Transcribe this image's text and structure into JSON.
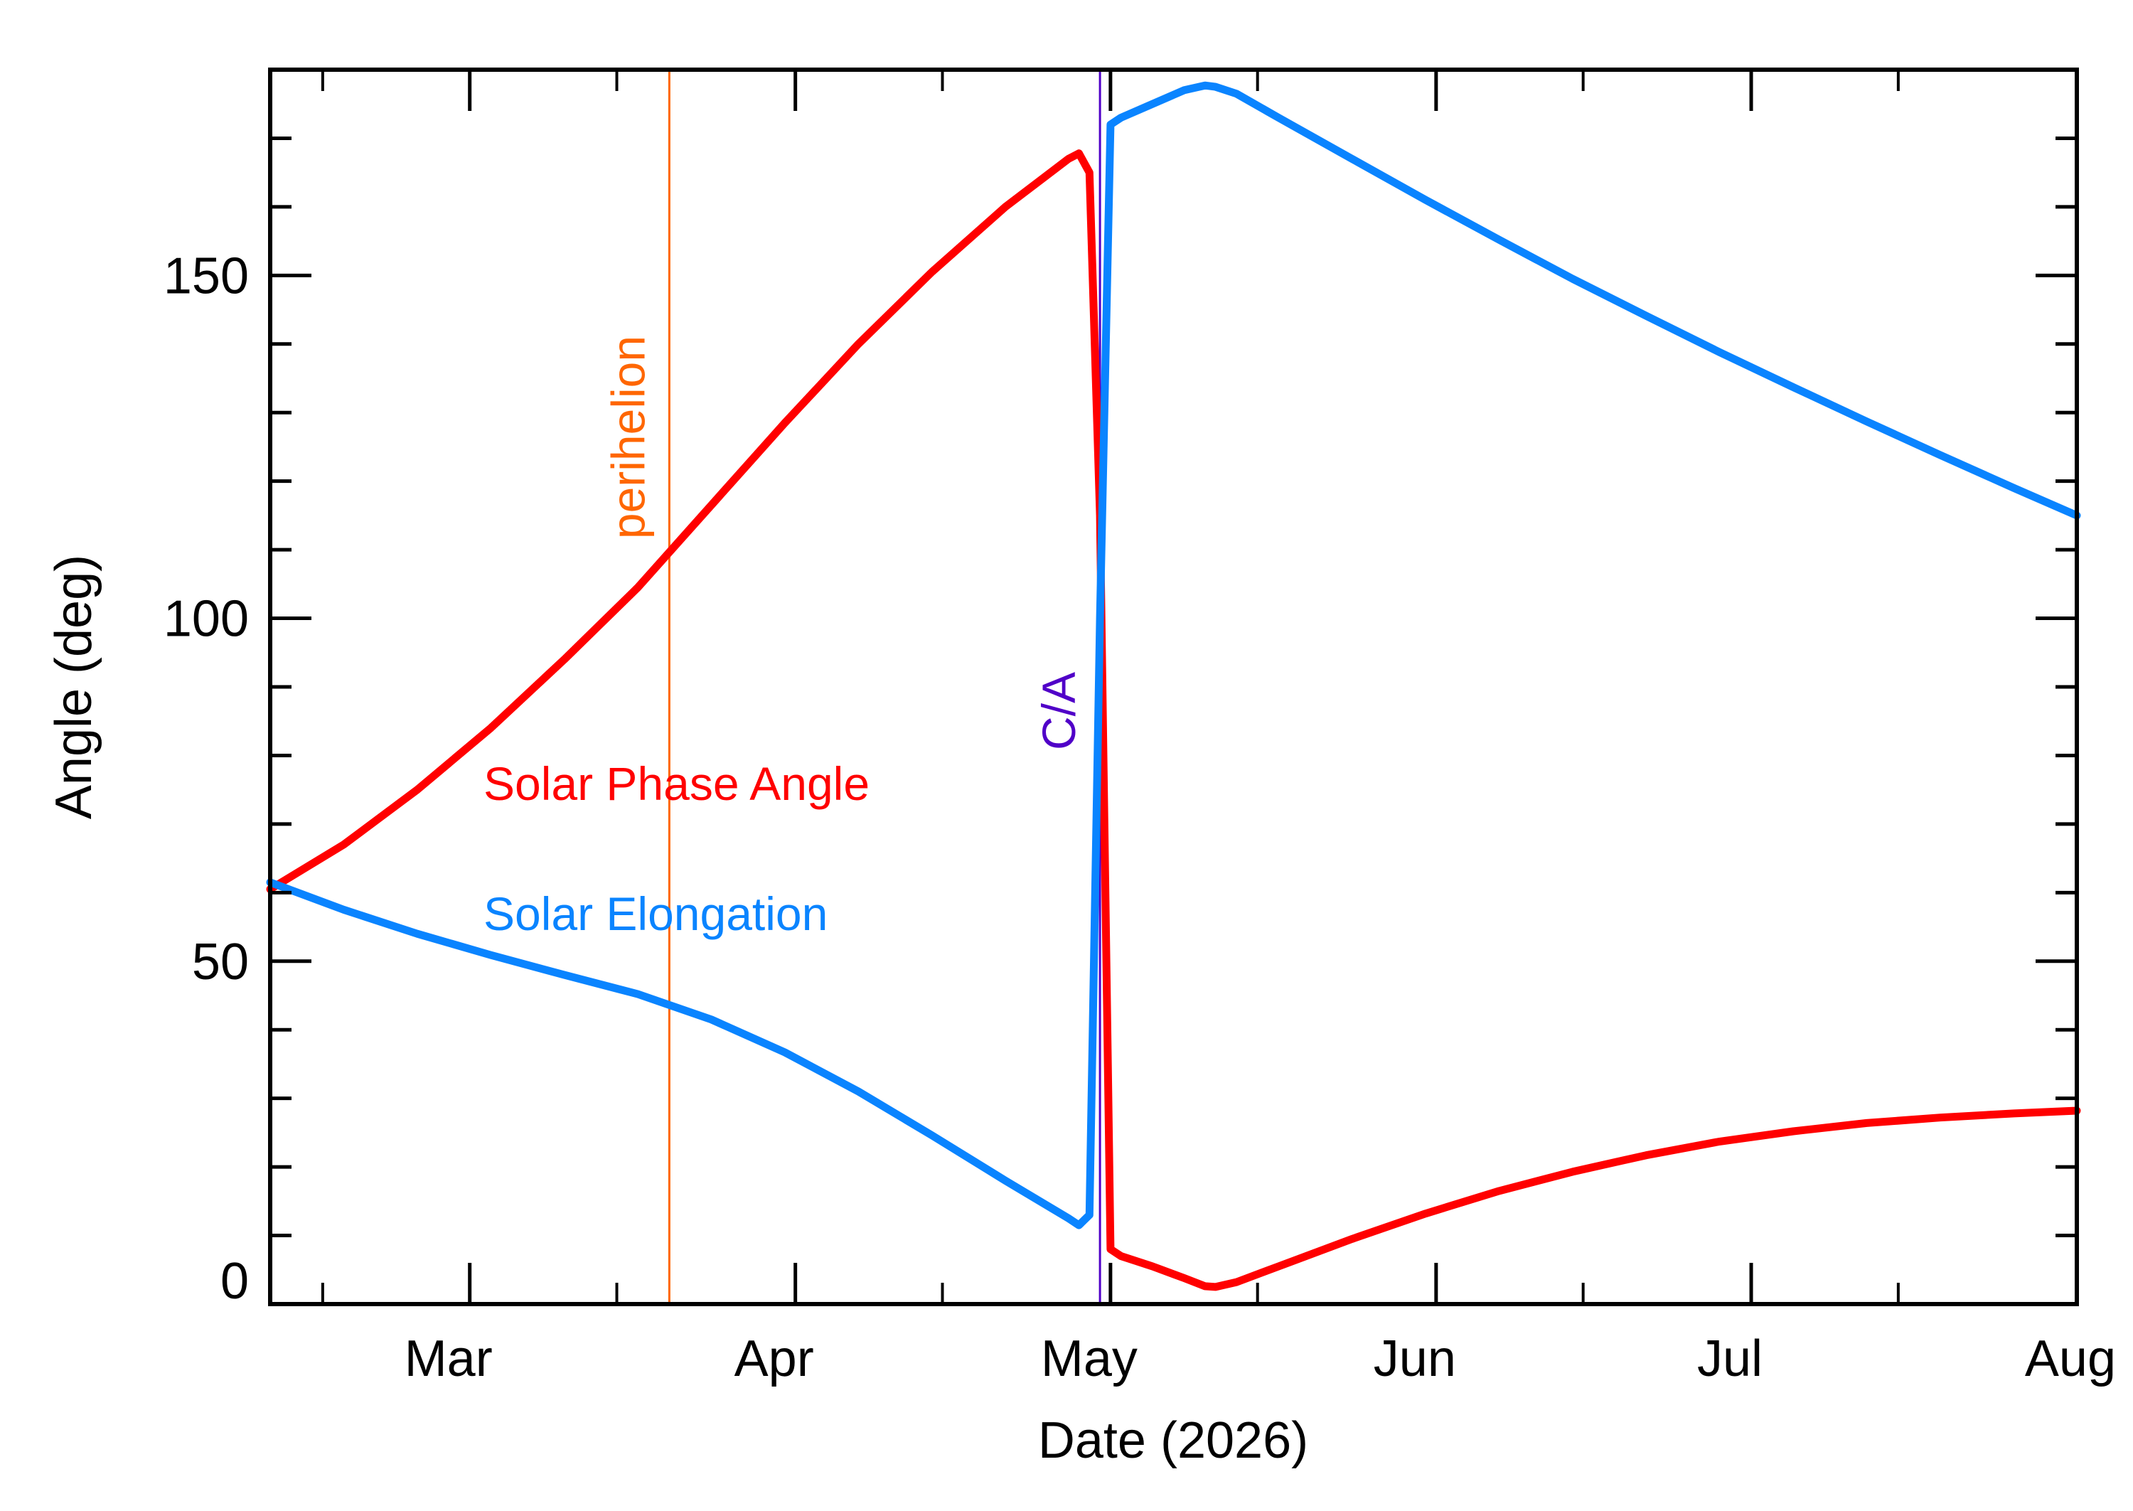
{
  "chart_data": {
    "type": "line",
    "xlabel": "Date (2026)",
    "ylabel": "Angle (deg)",
    "xlim": [
      "2026-02-10",
      "2026-08-01"
    ],
    "ylim": [
      0,
      180
    ],
    "x_ticks": [
      {
        "date": "2026-03-01",
        "label": "Mar"
      },
      {
        "date": "2026-04-01",
        "label": "Apr"
      },
      {
        "date": "2026-05-01",
        "label": "May"
      },
      {
        "date": "2026-06-01",
        "label": "Jun"
      },
      {
        "date": "2026-07-01",
        "label": "Jul"
      },
      {
        "date": "2026-08-01",
        "label": "Aug"
      }
    ],
    "x_minor_tick_dates": [
      "2026-02-15",
      "2026-03-15",
      "2026-04-15",
      "2026-05-15",
      "2026-06-15",
      "2026-07-15"
    ],
    "y_ticks": [
      0,
      50,
      100,
      150
    ],
    "y_minor_step": 10,
    "grid": false,
    "series": [
      {
        "name": "Solar Phase Angle",
        "color": "#ff0000",
        "points": [
          [
            "2026-02-10",
            60.5
          ],
          [
            "2026-02-17",
            67
          ],
          [
            "2026-02-24",
            75
          ],
          [
            "2026-03-03",
            84
          ],
          [
            "2026-03-10",
            94
          ],
          [
            "2026-03-17",
            104.5
          ],
          [
            "2026-03-24",
            116.5
          ],
          [
            "2026-03-31",
            128.5
          ],
          [
            "2026-04-07",
            140
          ],
          [
            "2026-04-14",
            150.5
          ],
          [
            "2026-04-21",
            160
          ],
          [
            "2026-04-27",
            167
          ],
          [
            "2026-04-28",
            167.8
          ],
          [
            "2026-04-29",
            165
          ],
          [
            "2026-04-30",
            115
          ],
          [
            "2026-05-01",
            8
          ],
          [
            "2026-05-02",
            7
          ],
          [
            "2026-05-05",
            5.5
          ],
          [
            "2026-05-08",
            3.8
          ],
          [
            "2026-05-10",
            2.6
          ],
          [
            "2026-05-11",
            2.5
          ],
          [
            "2026-05-13",
            3.2
          ],
          [
            "2026-05-17",
            5.5
          ],
          [
            "2026-05-24",
            9.5
          ],
          [
            "2026-05-31",
            13.2
          ],
          [
            "2026-06-07",
            16.5
          ],
          [
            "2026-06-14",
            19.3
          ],
          [
            "2026-06-21",
            21.7
          ],
          [
            "2026-06-28",
            23.7
          ],
          [
            "2026-07-05",
            25.2
          ],
          [
            "2026-07-12",
            26.4
          ],
          [
            "2026-07-19",
            27.2
          ],
          [
            "2026-07-26",
            27.8
          ],
          [
            "2026-08-01",
            28.2
          ]
        ]
      },
      {
        "name": "Solar Elongation",
        "color": "#0a84ff",
        "points": [
          [
            "2026-02-10",
            61.5
          ],
          [
            "2026-02-17",
            57.5
          ],
          [
            "2026-02-24",
            54
          ],
          [
            "2026-03-03",
            50.9
          ],
          [
            "2026-03-10",
            48
          ],
          [
            "2026-03-17",
            45.2
          ],
          [
            "2026-03-24",
            41.5
          ],
          [
            "2026-03-31",
            36.7
          ],
          [
            "2026-04-07",
            31
          ],
          [
            "2026-04-14",
            24.6
          ],
          [
            "2026-04-21",
            18
          ],
          [
            "2026-04-27",
            12.5
          ],
          [
            "2026-04-28",
            11.5
          ],
          [
            "2026-04-29",
            13
          ],
          [
            "2026-04-30",
            100
          ],
          [
            "2026-05-01",
            172
          ],
          [
            "2026-05-02",
            173
          ],
          [
            "2026-05-05",
            175
          ],
          [
            "2026-05-08",
            177
          ],
          [
            "2026-05-10",
            177.7
          ],
          [
            "2026-05-11",
            177.5
          ],
          [
            "2026-05-13",
            176.5
          ],
          [
            "2026-05-17",
            173
          ],
          [
            "2026-05-24",
            167
          ],
          [
            "2026-05-31",
            161
          ],
          [
            "2026-06-07",
            155.2
          ],
          [
            "2026-06-14",
            149.5
          ],
          [
            "2026-06-21",
            144.1
          ],
          [
            "2026-06-28",
            138.8
          ],
          [
            "2026-07-05",
            133.7
          ],
          [
            "2026-07-12",
            128.7
          ],
          [
            "2026-07-19",
            123.8
          ],
          [
            "2026-07-26",
            119
          ],
          [
            "2026-08-01",
            115
          ]
        ]
      }
    ],
    "markers": [
      {
        "label": "perihelion",
        "date": "2026-03-20",
        "color": "#ff6600"
      },
      {
        "label": "C/A",
        "date": "2026-04-30",
        "color": "#5000c8"
      }
    ]
  }
}
